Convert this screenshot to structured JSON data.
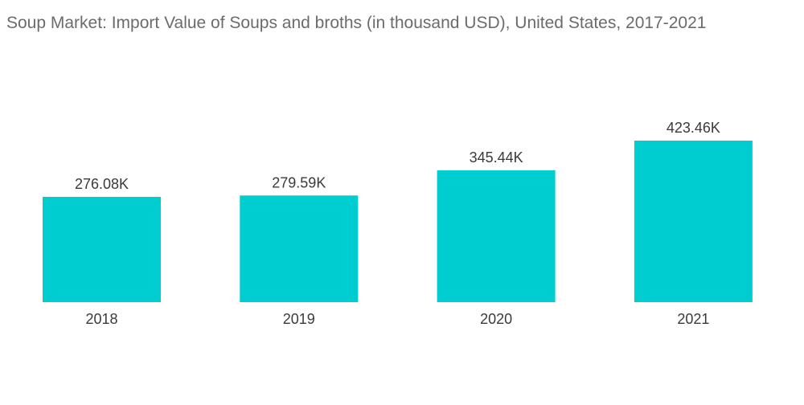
{
  "chart_data": {
    "type": "bar",
    "title": "Soup Market: Import Value of Soups and broths (in thousand USD), United States, 2017-2021",
    "xlabel": "",
    "ylabel": "",
    "categories": [
      "2018",
      "2019",
      "2020",
      "2021"
    ],
    "values": [
      276.08,
      279.59,
      345.44,
      423.46
    ],
    "data_labels": [
      "276.08K",
      "279.59K",
      "345.44K",
      "423.46K"
    ],
    "ylim": [
      0,
      423.46
    ],
    "grid": false,
    "legend": "none",
    "bar_color": "#00cdd0"
  }
}
